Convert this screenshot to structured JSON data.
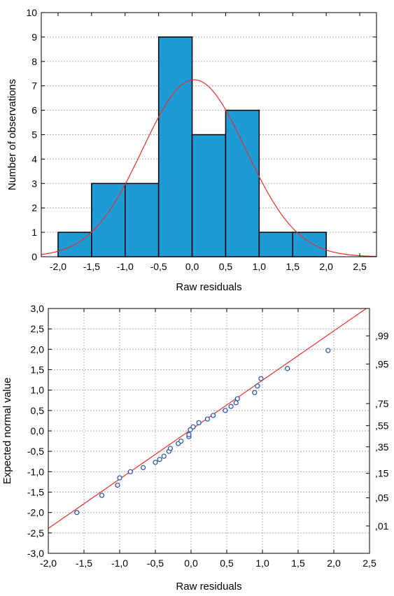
{
  "chart_data": [
    {
      "type": "bar",
      "subtype": "histogram",
      "xlabel": "Raw residuals",
      "ylabel": "Number of observations",
      "xlim": [
        -2.25,
        2.75
      ],
      "ylim": [
        0,
        10
      ],
      "x_ticks": [
        "-2,0",
        "-1,5",
        "-1,0",
        "-0,5",
        "0,0",
        "0,5",
        "1,0",
        "1,5",
        "2,0",
        "2,5"
      ],
      "y_ticks": [
        "0",
        "1",
        "2",
        "3",
        "4",
        "5",
        "6",
        "7",
        "8",
        "9",
        "10"
      ],
      "bins": [
        {
          "from": -2.0,
          "to": -1.5,
          "count": 1
        },
        {
          "from": -1.5,
          "to": -1.0,
          "count": 3
        },
        {
          "from": -1.0,
          "to": -0.5,
          "count": 3
        },
        {
          "from": -0.5,
          "to": 0.0,
          "count": 9
        },
        {
          "from": 0.0,
          "to": 0.5,
          "count": 5
        },
        {
          "from": 0.5,
          "to": 1.0,
          "count": 6
        },
        {
          "from": 1.0,
          "to": 1.5,
          "count": 1
        },
        {
          "from": 1.5,
          "to": 2.0,
          "count": 1
        }
      ],
      "normal_curve": {
        "mean": 0.03,
        "sd": 0.77,
        "peak": 7.25
      },
      "grid": true,
      "colors": {
        "bar": "#1c9bd6",
        "bar_edge": "#000000",
        "curve": "#e8302a",
        "grid": "#b0b0b0"
      }
    },
    {
      "type": "scatter",
      "subtype": "normal-probability-plot",
      "xlabel": "Raw residuals",
      "ylabel": "Expected normal value",
      "xlim": [
        -2.0,
        2.5
      ],
      "ylim": [
        -3.0,
        3.0
      ],
      "x_ticks": [
        "-2,0",
        "-1,5",
        "-1,0",
        "-0,5",
        "0,0",
        "0,5",
        "1,0",
        "1,5",
        "2,0",
        "2,5"
      ],
      "y_ticks": [
        "-3,0",
        "-2,5",
        "-2,0",
        "-1,5",
        "-1,0",
        "-0,5",
        "0,0",
        "0,5",
        "1,0",
        "1,5",
        "2,0",
        "2,5",
        "3,0"
      ],
      "prob_ticks": [
        {
          "label": ",01",
          "z": -2.33
        },
        {
          "label": ",05",
          "z": -1.64
        },
        {
          "label": ",15",
          "z": -1.04
        },
        {
          "label": ",35",
          "z": -0.39
        },
        {
          "label": ",55",
          "z": 0.13
        },
        {
          "label": ",75",
          "z": 0.67
        },
        {
          "label": ",95",
          "z": 1.64
        },
        {
          "label": ",99",
          "z": 2.33
        }
      ],
      "points": [
        {
          "x": -1.6,
          "y": -2.0
        },
        {
          "x": -1.25,
          "y": -1.58
        },
        {
          "x": -1.03,
          "y": -1.33
        },
        {
          "x": -1.0,
          "y": -1.15
        },
        {
          "x": -0.85,
          "y": -1.0
        },
        {
          "x": -0.67,
          "y": -0.9
        },
        {
          "x": -0.5,
          "y": -0.77
        },
        {
          "x": -0.44,
          "y": -0.7
        },
        {
          "x": -0.38,
          "y": -0.62
        },
        {
          "x": -0.31,
          "y": -0.5
        },
        {
          "x": -0.29,
          "y": -0.43
        },
        {
          "x": -0.18,
          "y": -0.31
        },
        {
          "x": -0.14,
          "y": -0.25
        },
        {
          "x": -0.03,
          "y": -0.14
        },
        {
          "x": -0.03,
          "y": -0.09
        },
        {
          "x": -0.01,
          "y": 0.03
        },
        {
          "x": 0.03,
          "y": 0.1
        },
        {
          "x": 0.11,
          "y": 0.2
        },
        {
          "x": 0.23,
          "y": 0.29
        },
        {
          "x": 0.31,
          "y": 0.38
        },
        {
          "x": 0.48,
          "y": 0.5
        },
        {
          "x": 0.56,
          "y": 0.6
        },
        {
          "x": 0.63,
          "y": 0.69
        },
        {
          "x": 0.65,
          "y": 0.79
        },
        {
          "x": 0.89,
          "y": 0.94
        },
        {
          "x": 0.93,
          "y": 1.1
        },
        {
          "x": 0.98,
          "y": 1.28
        },
        {
          "x": 1.35,
          "y": 1.53
        },
        {
          "x": 1.92,
          "y": 1.97
        }
      ],
      "fit_line": {
        "intercept": 0.03,
        "slope": 1.21
      },
      "grid": true,
      "colors": {
        "point": "#1f4fa8",
        "line": "#e8302a",
        "grid": "#b0b0b0"
      }
    }
  ]
}
